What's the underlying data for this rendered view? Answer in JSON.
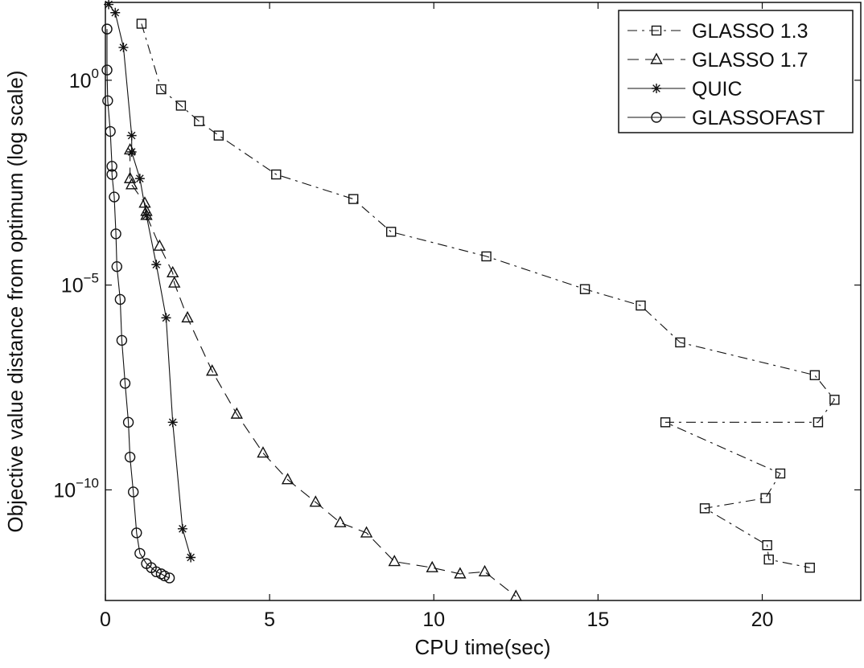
{
  "chart_data": {
    "type": "line",
    "title": "",
    "xlabel": "CPU time(sec)",
    "ylabel": "Objective value distance from optimum (log scale)",
    "xlim": [
      0,
      23
    ],
    "ylim_exponent": [
      -12.7,
      1.9
    ],
    "y_scale": "log",
    "x_ticks": [
      0,
      5,
      10,
      15,
      20
    ],
    "y_ticks": [
      {
        "exponent": 0,
        "base": "10",
        "exp_label": "0"
      },
      {
        "exponent": -5,
        "base": "10",
        "exp_label": "−5"
      },
      {
        "exponent": -10,
        "base": "10",
        "exp_label": "−10"
      }
    ],
    "legend_position": "top-right",
    "grid": false,
    "series": [
      {
        "name": "GLASSO 1.3",
        "marker": "square",
        "line_style": "dashdot",
        "x": [
          1.1,
          1.7,
          2.3,
          2.85,
          3.45,
          5.2,
          7.55,
          8.7,
          11.6,
          14.6,
          16.3,
          17.5,
          21.6,
          22.2,
          21.7,
          17.05,
          20.55,
          20.1,
          18.25,
          20.15,
          20.2,
          21.45
        ],
        "y_exponent": [
          1.38,
          -0.22,
          -0.62,
          -1.0,
          -1.35,
          -2.3,
          -2.9,
          -3.7,
          -4.3,
          -5.1,
          -5.5,
          -6.4,
          -7.2,
          -7.8,
          -8.35,
          -8.35,
          -9.6,
          -10.2,
          -10.45,
          -11.35,
          -11.7,
          -11.9
        ]
      },
      {
        "name": "GLASSO 1.7",
        "marker": "triangle",
        "line_style": "dashed",
        "x": [
          0.75,
          0.75,
          0.8,
          1.2,
          1.25,
          1.25,
          1.65,
          2.05,
          2.1,
          2.5,
          3.25,
          4.0,
          4.8,
          5.55,
          6.4,
          7.15,
          7.95,
          8.8,
          9.95,
          10.8,
          11.55,
          12.5
        ],
        "y_exponent": [
          -1.7,
          -2.4,
          -2.55,
          -3.0,
          -3.2,
          -3.3,
          -4.05,
          -4.7,
          -4.95,
          -5.8,
          -7.1,
          -8.15,
          -9.1,
          -9.75,
          -10.3,
          -10.8,
          -11.05,
          -11.75,
          -11.9,
          -12.05,
          -12.0,
          -12.6
        ]
      },
      {
        "name": "QUIC",
        "marker": "star",
        "line_style": "solid",
        "x": [
          0.1,
          0.3,
          0.55,
          0.8,
          0.8,
          1.05,
          1.25,
          1.55,
          1.85,
          2.05,
          2.35,
          2.6
        ],
        "y_exponent": [
          1.85,
          1.65,
          0.8,
          -1.35,
          -1.75,
          -2.4,
          -3.3,
          -4.5,
          -5.8,
          -8.35,
          -10.95,
          -11.65
        ]
      },
      {
        "name": "GLASSOFAST",
        "marker": "circle",
        "line_style": "solid",
        "x": [
          0.05,
          0.05,
          0.07,
          0.15,
          0.2,
          0.2,
          0.27,
          0.32,
          0.35,
          0.45,
          0.5,
          0.6,
          0.7,
          0.75,
          0.85,
          0.95,
          1.05,
          1.25,
          1.4,
          1.55,
          1.7,
          1.8,
          1.95
        ],
        "y_exponent": [
          1.25,
          0.25,
          -0.5,
          -1.25,
          -2.1,
          -2.3,
          -2.85,
          -3.75,
          -4.55,
          -5.35,
          -6.35,
          -7.4,
          -8.35,
          -9.2,
          -10.05,
          -11.05,
          -11.55,
          -11.8,
          -11.9,
          -12.0,
          -12.05,
          -12.1,
          -12.15
        ]
      }
    ]
  }
}
